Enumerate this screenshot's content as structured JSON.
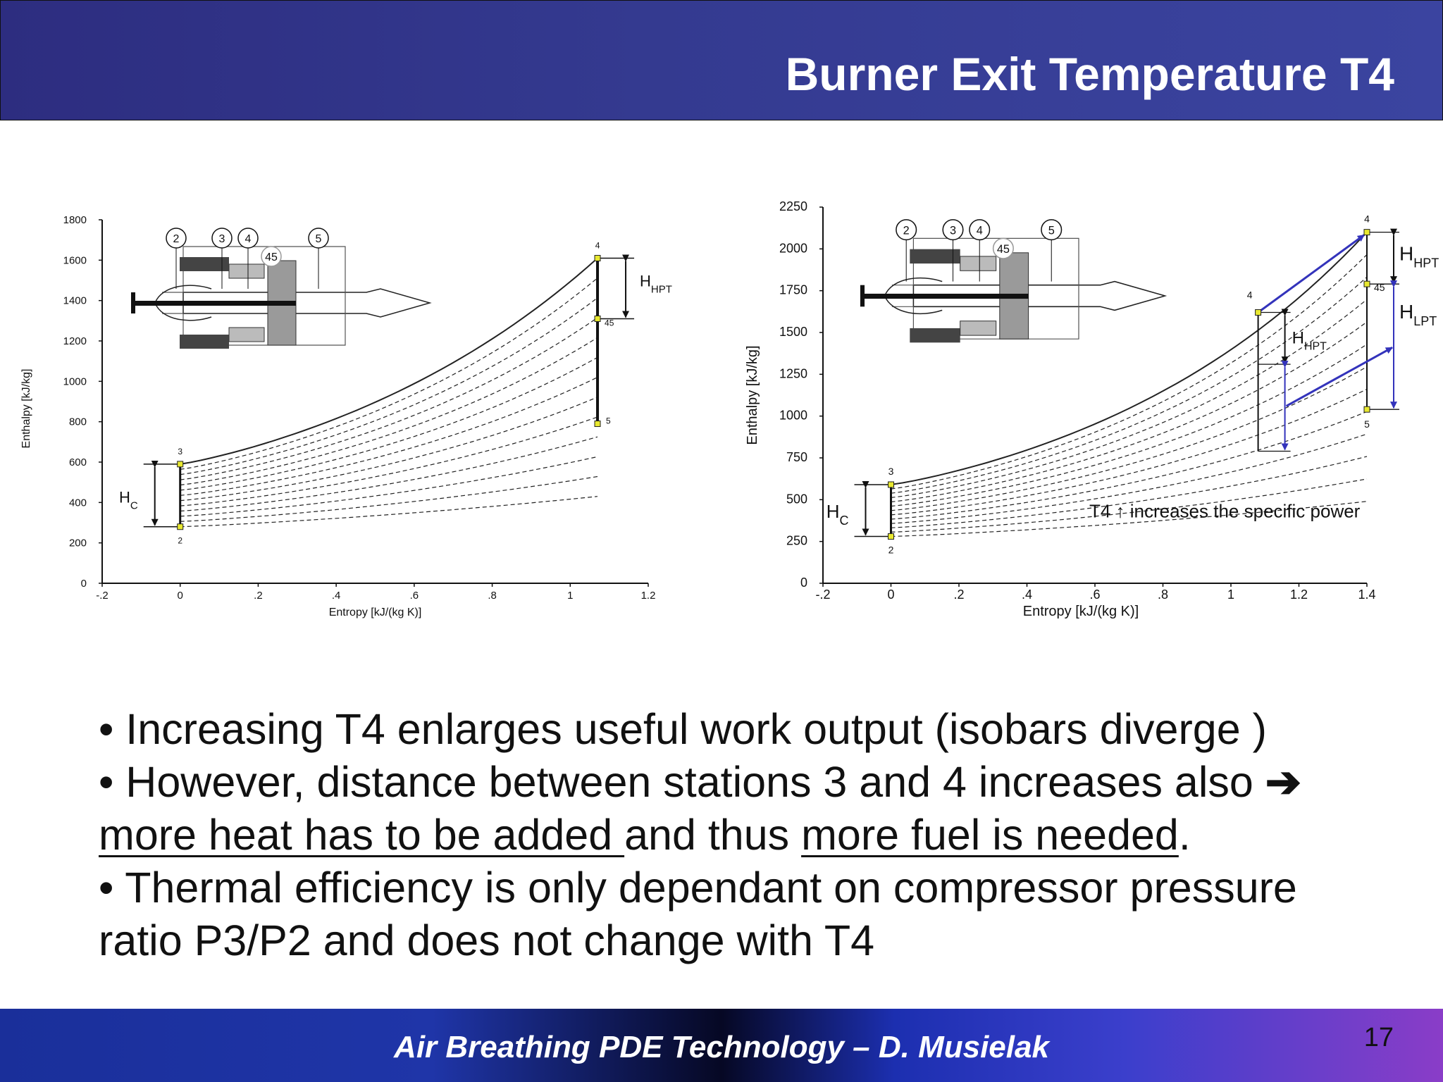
{
  "slide": {
    "title": "Burner Exit Temperature T4",
    "bullets": [
      {
        "parts": [
          {
            "text": "• Increasing T4 enlarges useful work output (isobars diverge )"
          }
        ]
      },
      {
        "parts": [
          {
            "text": "• However, distance between stations 3 and 4 increases also "
          },
          {
            "arrow": "➔"
          }
        ]
      },
      {
        "parts": [
          {
            "text": "more heat has to be added ",
            "u": true
          },
          {
            "text": "and thus "
          },
          {
            "text": "more fuel is needed",
            "u": true
          },
          {
            "text": "."
          }
        ]
      },
      {
        "parts": [
          {
            "text": "• Thermal efficiency is only dependant on compressor pressure"
          }
        ]
      },
      {
        "parts": [
          {
            "text": "ratio P3/P2 and does not change with T4"
          }
        ]
      }
    ],
    "footer": "Air Breathing PDE Technology – D. Musielak",
    "page_number": "17"
  },
  "chart_data": [
    {
      "type": "line",
      "xlabel": "Entropy [kJ/(kg K)]",
      "ylabel": "Enthalpy [kJ/kg]",
      "xlim": [
        -0.2,
        1.2
      ],
      "ylim": [
        0,
        1800
      ],
      "x_ticks": [
        "-.2",
        "0",
        ".2",
        ".4",
        ".6",
        ".8",
        "1",
        "1.2"
      ],
      "y_ticks": [
        "0",
        "200",
        "400",
        "600",
        "800",
        "1000",
        "1200",
        "1400",
        "1600",
        "1800"
      ],
      "stations": [
        {
          "label": "2",
          "x": 0.0,
          "y": 280
        },
        {
          "label": "3",
          "x": 0.0,
          "y": 590
        },
        {
          "label": "4",
          "x": 1.07,
          "y": 1610
        },
        {
          "label": "45",
          "x": 1.07,
          "y": 1310
        },
        {
          "label": "5",
          "x": 1.07,
          "y": 790
        }
      ],
      "isobar_count": 13,
      "annotations": [
        "H_C",
        "H_HPT"
      ],
      "inset_stations": [
        "2",
        "3",
        "4",
        "45",
        "5"
      ]
    },
    {
      "type": "line",
      "xlabel": "Entropy [kJ/(kg K)]",
      "ylabel": "Enthalpy [kJ/kg]",
      "xlim": [
        -0.2,
        1.4
      ],
      "ylim": [
        0,
        2250
      ],
      "x_ticks": [
        "-.2",
        "0",
        ".2",
        ".4",
        ".6",
        ".8",
        "1",
        "1.2",
        "1.4"
      ],
      "y_ticks": [
        "0",
        "250",
        "500",
        "750",
        "1000",
        "1250",
        "1500",
        "1750",
        "2000",
        "2250"
      ],
      "stations": [
        {
          "label": "2",
          "x": 0.0,
          "y": 280
        },
        {
          "label": "3",
          "x": 0.0,
          "y": 590
        },
        {
          "label": "4",
          "x": 1.08,
          "y": 1620
        },
        {
          "label": "4",
          "x": 1.4,
          "y": 2100
        },
        {
          "label": "45",
          "x": 1.4,
          "y": 1790
        },
        {
          "label": "5",
          "x": 1.4,
          "y": 1040
        }
      ],
      "isobar_count": 13,
      "annotations": [
        "H_C",
        "H_HPT",
        "H_HPT",
        "H_LPT"
      ],
      "note": "T4 ↑ increases the specific power",
      "accent_color": "#3333bb",
      "inset_stations": [
        "2",
        "3",
        "4",
        "45",
        "5"
      ]
    }
  ]
}
